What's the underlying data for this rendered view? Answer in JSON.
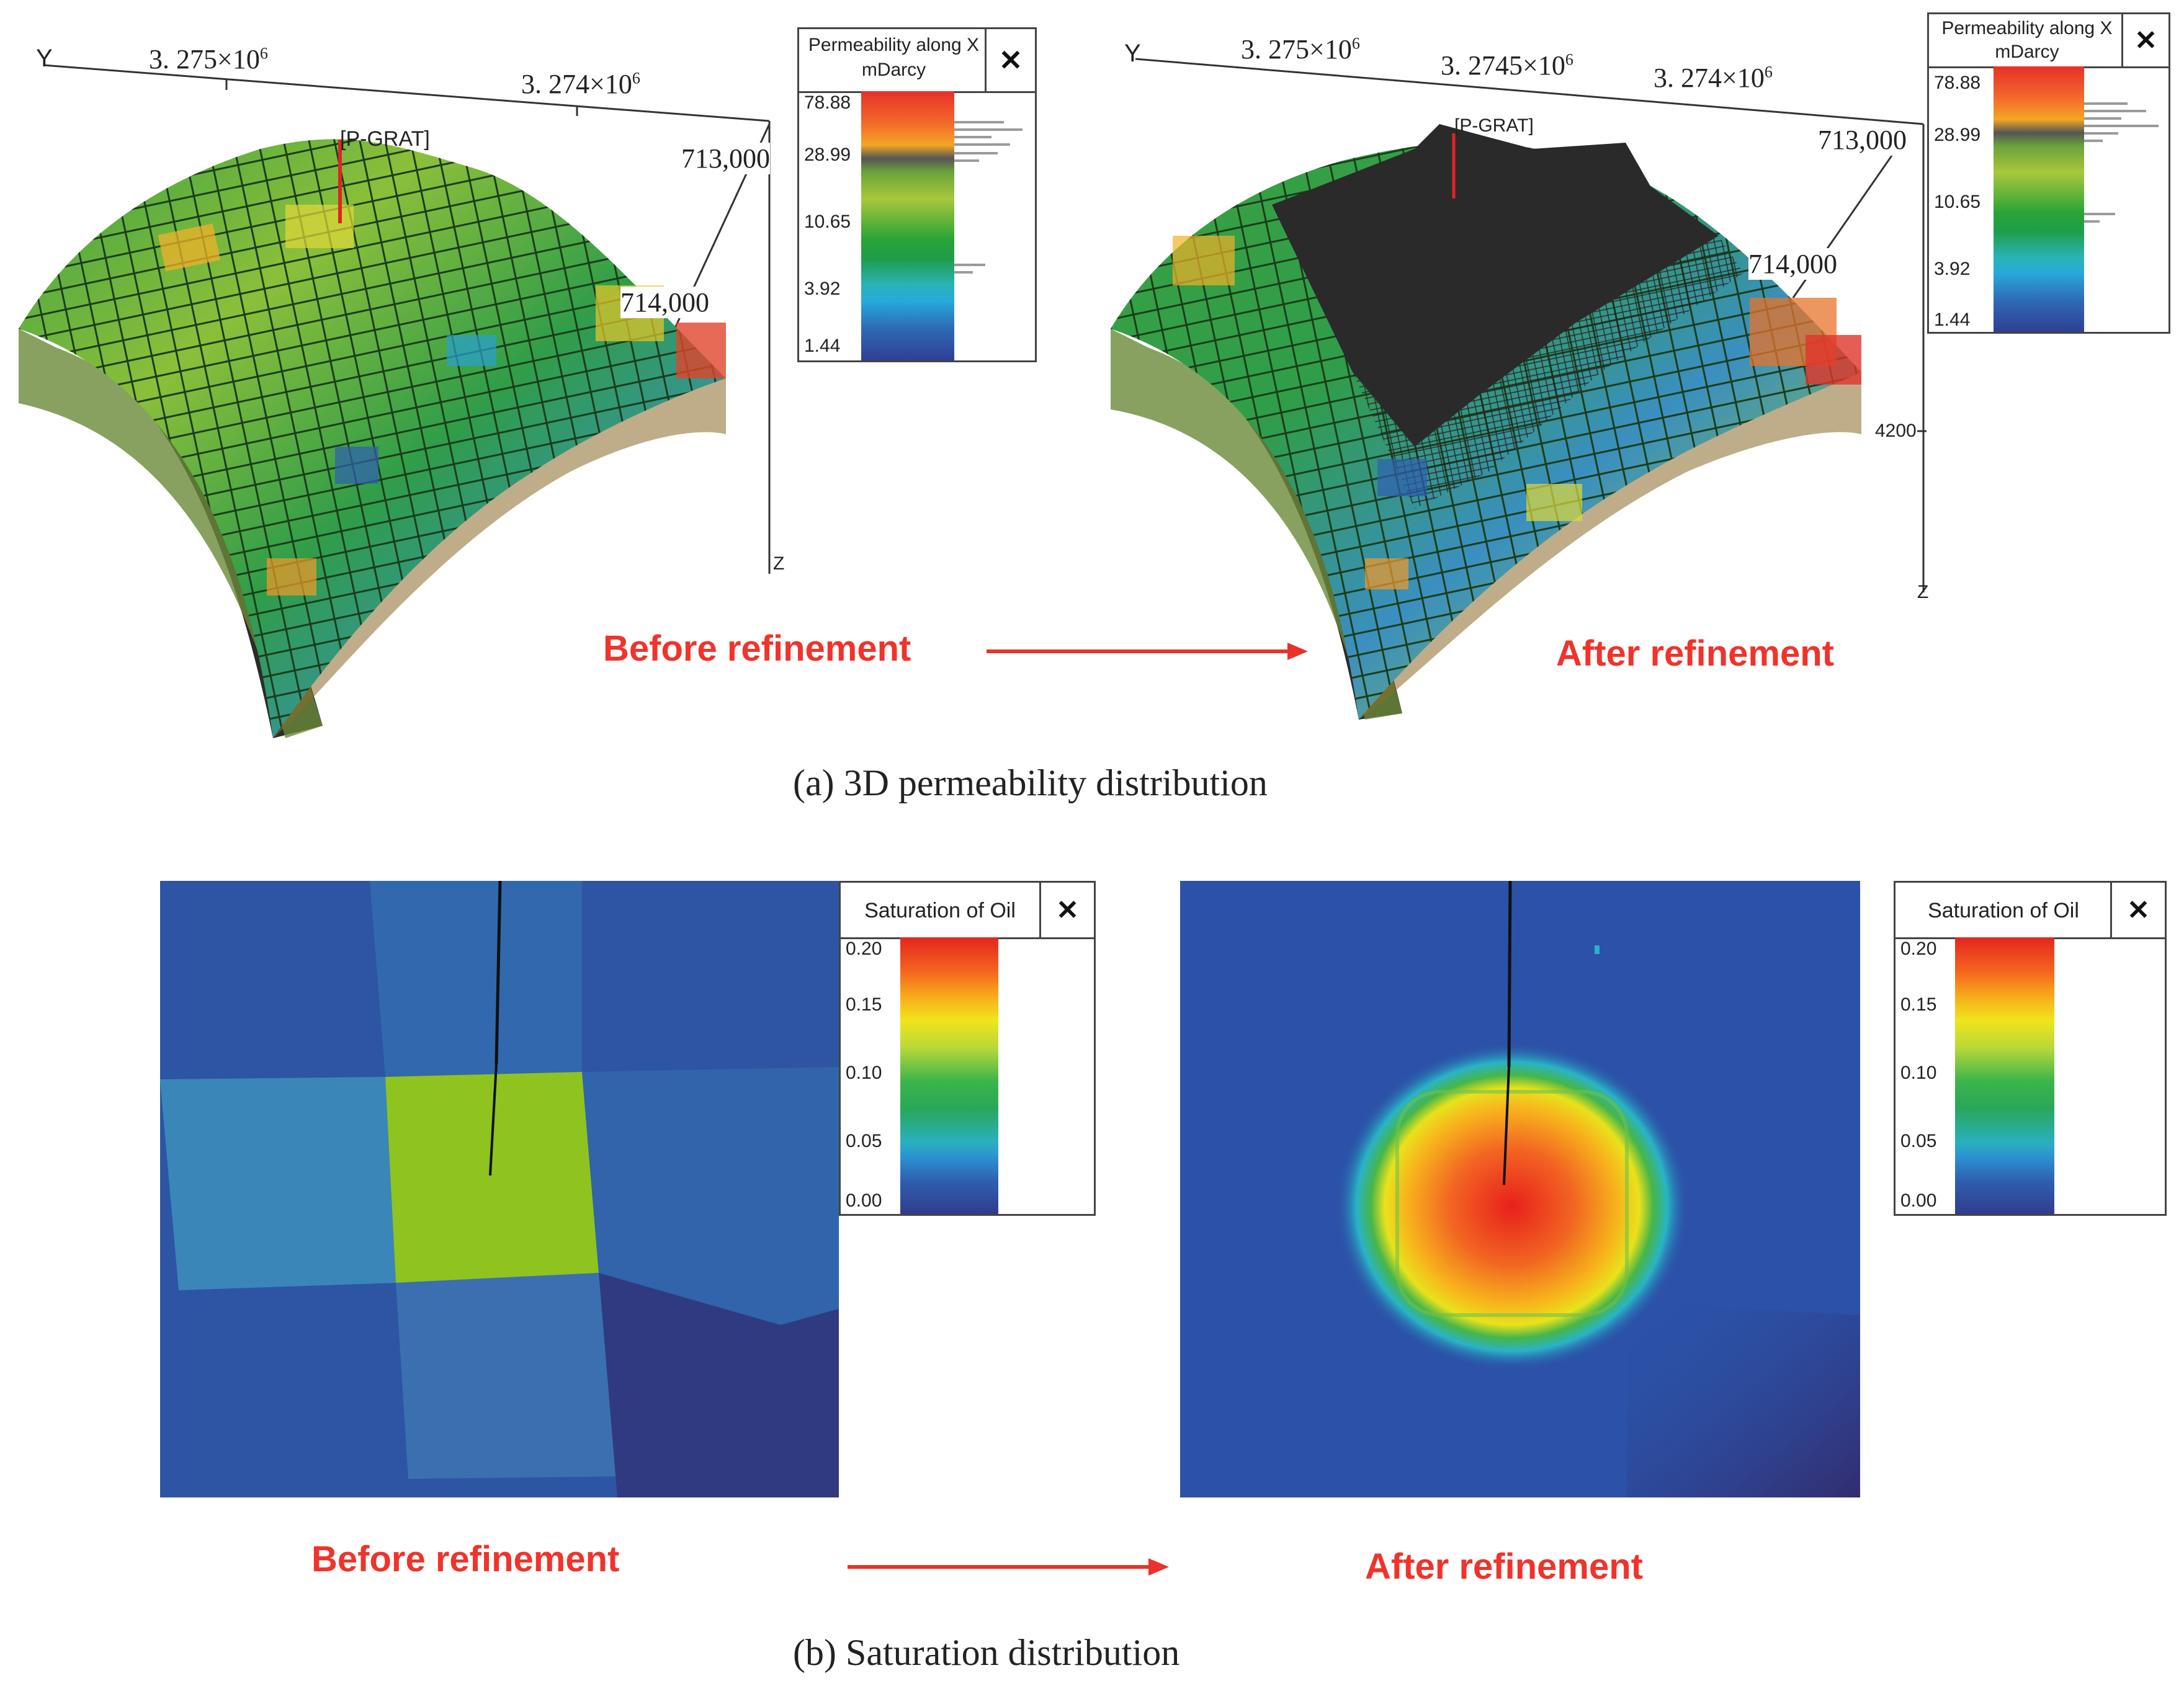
{
  "panel_a": {
    "caption": "(a) 3D permeability distribution",
    "before": {
      "stage_label": "Before refinement",
      "axis_y": "Y",
      "axis_z": "Z",
      "tick_1": "3. 275×10",
      "tick_1_exp": "6",
      "tick_2": "3. 274×10",
      "tick_2_exp": "6",
      "tick_713": "713,000",
      "tick_714": "714,000",
      "well": "[P-GRAT]"
    },
    "after": {
      "stage_label": "After refinement",
      "axis_y": "Y",
      "axis_z": "Z",
      "tick_1": "3. 275×10",
      "tick_1_exp": "6",
      "tick_2": "3. 2745×10",
      "tick_2_exp": "6",
      "tick_3": "3. 274×10",
      "tick_3_exp": "6",
      "tick_713": "713,000",
      "tick_714": "714,000",
      "tick_depth": "4200",
      "well": "[P-GRAT]"
    },
    "legend": {
      "title_line1": "Permeability along X",
      "title_line2": "mDarcy",
      "close": "✕",
      "ticks": [
        "78.88",
        "28.99",
        "10.65",
        "3.92",
        "1.44"
      ]
    }
  },
  "panel_b": {
    "caption": "(b) Saturation distribution",
    "before_label": "Before refinement",
    "after_label": "After refinement",
    "legend": {
      "title": "Saturation of Oil",
      "close": "✕",
      "ticks": [
        "0.20",
        "0.15",
        "0.10",
        "0.05",
        "0.00"
      ]
    }
  },
  "colors": {
    "label_red": "#f0332b",
    "arrow_red": "#e8322a"
  }
}
